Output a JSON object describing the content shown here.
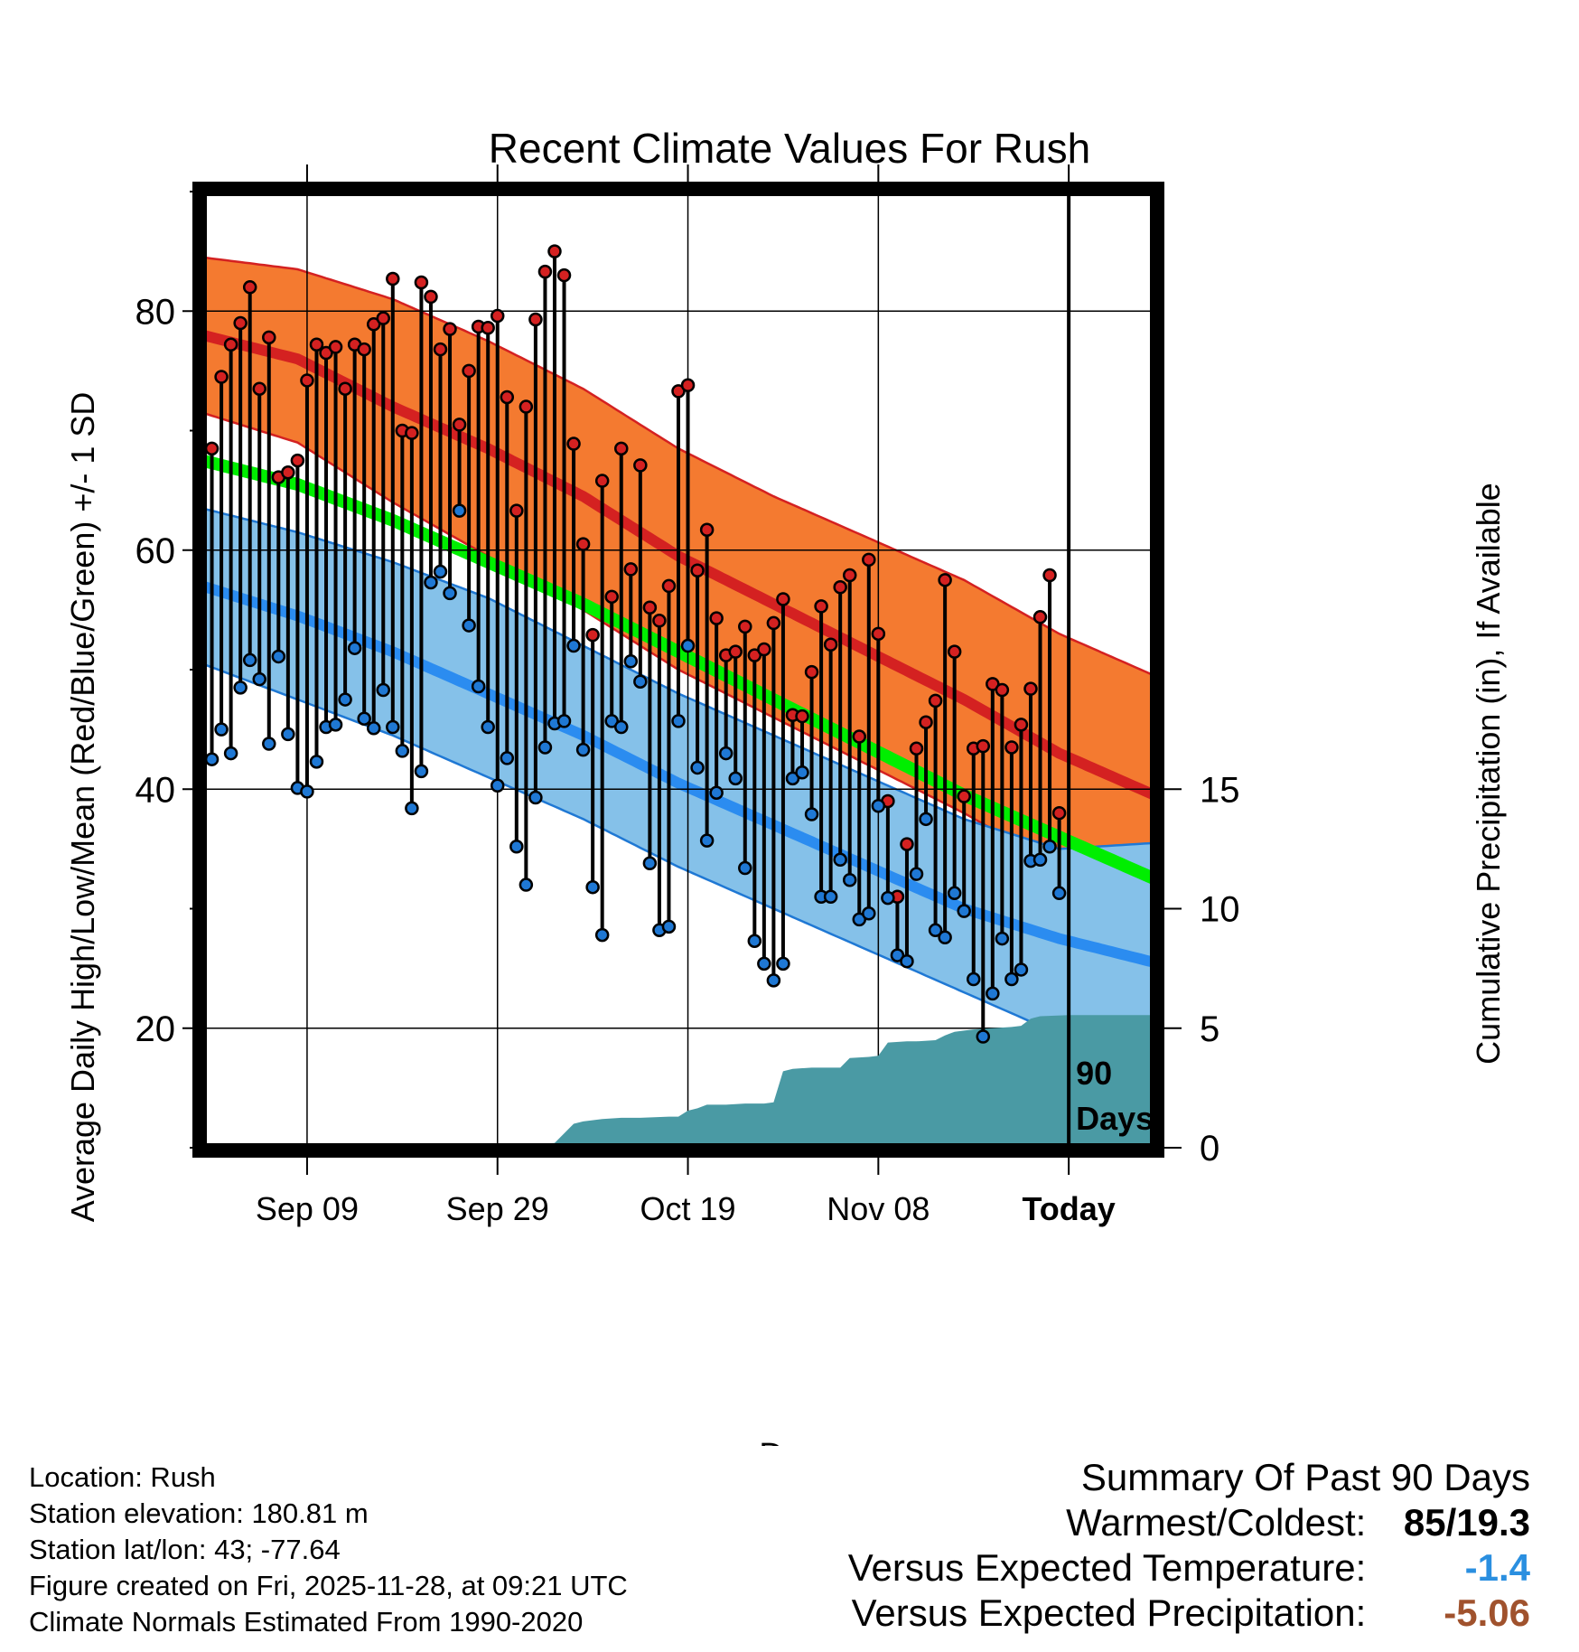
{
  "chart_data": {
    "type": "line",
    "title": "Recent Climate Values For Rush",
    "xlabel": "Day",
    "ylabel": "Average Daily High/Low/Mean (Red/Blue/Green) +/- 1 SD",
    "y2label": "Cumulative Precipitation (in), If Available",
    "xlim": [
      1,
      101
    ],
    "ylim": [
      10,
      90
    ],
    "y2lim": [
      0,
      40
    ],
    "xticks": [
      {
        "day": 12,
        "label": "Sep 09"
      },
      {
        "day": 32,
        "label": "Sep 29"
      },
      {
        "day": 52,
        "label": "Oct 19"
      },
      {
        "day": 72,
        "label": "Nov 08"
      },
      {
        "day": 92,
        "label": "Today"
      }
    ],
    "yticks": [
      20,
      40,
      60,
      80
    ],
    "y2ticks": [
      0,
      5,
      10,
      15
    ],
    "today_marker": {
      "day": 92,
      "label_line1": "90",
      "label_line2": "Days"
    },
    "normals": {
      "day_index": [
        1,
        11,
        21,
        31,
        41,
        51,
        61,
        71,
        81,
        91,
        101
      ],
      "high_upper": [
        84.5,
        83.5,
        81.0,
        77.5,
        73.5,
        68.5,
        64.5,
        61.0,
        57.5,
        53.0,
        49.5
      ],
      "high_mean": [
        78.0,
        76.0,
        72.0,
        68.5,
        64.5,
        59.5,
        55.5,
        51.5,
        47.5,
        43.0,
        39.5
      ],
      "high_lower": [
        71.5,
        69.0,
        64.0,
        59.5,
        55.0,
        50.0,
        46.0,
        42.0,
        38.0,
        33.5,
        30.0
      ],
      "mean": [
        67.5,
        65.5,
        62.5,
        59.0,
        55.5,
        51.5,
        47.5,
        43.5,
        39.5,
        36.0,
        32.5
      ],
      "low_upper": [
        63.5,
        61.5,
        59.0,
        56.0,
        52.0,
        48.0,
        44.5,
        41.0,
        37.5,
        35.0,
        35.5
      ],
      "low_mean": [
        57.0,
        54.5,
        51.5,
        48.0,
        44.5,
        40.5,
        37.0,
        33.5,
        30.0,
        27.5,
        25.5
      ],
      "low_lower": [
        50.5,
        47.5,
        44.5,
        41.0,
        37.5,
        33.5,
        30.0,
        26.5,
        23.0,
        19.5,
        17.0
      ]
    },
    "series": [
      {
        "name": "Daily High",
        "color": "#d42121",
        "values": [
          68.5,
          74.5,
          77.2,
          79.0,
          82.0,
          73.5,
          77.8,
          66.1,
          66.5,
          67.5,
          74.2,
          77.2,
          76.5,
          77.0,
          73.5,
          77.2,
          76.8,
          78.9,
          79.4,
          82.7,
          70.0,
          69.8,
          82.4,
          81.2,
          76.8,
          78.5,
          70.5,
          75.0,
          78.7,
          78.6,
          79.6,
          72.8,
          63.3,
          72.0,
          79.3,
          83.3,
          85.0,
          83.0,
          68.9,
          60.5,
          52.9,
          65.8,
          56.1,
          68.5,
          58.4,
          67.1,
          55.2,
          54.1,
          57.0,
          73.3,
          73.8,
          58.3,
          61.7,
          54.3,
          51.2,
          51.5,
          53.6,
          51.2,
          51.7,
          53.9,
          55.9,
          46.2,
          46.1,
          49.8,
          55.3,
          52.1,
          56.9,
          57.9,
          44.4,
          59.2,
          53.0,
          39.0,
          31.0,
          35.4,
          43.4,
          45.6,
          47.4,
          57.5,
          51.5,
          39.4,
          43.4,
          43.6,
          48.8,
          48.3,
          43.5,
          45.4,
          48.4,
          54.4,
          57.9,
          38.0
        ]
      },
      {
        "name": "Daily Low",
        "color": "#1f78d4",
        "values": [
          42.5,
          45.0,
          43.0,
          48.5,
          50.8,
          49.2,
          43.8,
          51.1,
          44.6,
          40.1,
          39.8,
          42.3,
          45.2,
          45.4,
          47.5,
          51.8,
          45.9,
          45.1,
          48.3,
          45.2,
          43.2,
          38.4,
          41.5,
          57.3,
          58.2,
          56.4,
          63.3,
          53.7,
          48.6,
          45.2,
          40.3,
          42.6,
          35.2,
          32.0,
          39.3,
          43.5,
          45.5,
          45.7,
          52.0,
          43.3,
          31.8,
          27.8,
          45.7,
          45.2,
          50.7,
          49.0,
          33.8,
          28.2,
          28.5,
          45.7,
          52.0,
          41.8,
          35.7,
          39.7,
          43.0,
          40.9,
          33.4,
          27.3,
          25.4,
          24.0,
          25.4,
          40.9,
          41.4,
          37.9,
          31.0,
          31.0,
          34.1,
          32.4,
          29.1,
          29.6,
          38.6,
          30.9,
          26.1,
          25.6,
          32.9,
          37.5,
          28.2,
          27.6,
          31.3,
          29.8,
          24.1,
          19.3,
          22.9,
          27.5,
          24.1,
          24.9,
          34.0,
          34.1,
          35.2,
          31.3
        ]
      }
    ],
    "precipitation": {
      "name": "Cumulative Precipitation",
      "color": "#4a9aa4",
      "day_index": [
        1,
        28,
        32,
        36,
        38,
        40,
        41,
        43,
        45,
        47,
        50,
        51,
        52,
        53,
        54,
        56,
        58,
        60,
        61,
        62,
        63,
        65,
        68,
        69,
        71,
        72,
        73,
        75,
        76,
        78,
        79,
        80,
        81,
        82,
        86,
        87,
        88,
        89,
        92,
        101
      ],
      "values": [
        0.0,
        0.0,
        0.1,
        0.15,
        0.2,
        1.0,
        1.1,
        1.2,
        1.25,
        1.25,
        1.3,
        1.3,
        1.55,
        1.65,
        1.8,
        1.8,
        1.85,
        1.85,
        1.9,
        3.2,
        3.3,
        3.35,
        3.35,
        3.75,
        3.8,
        3.85,
        4.4,
        4.45,
        4.45,
        4.5,
        4.7,
        4.85,
        4.9,
        4.95,
        5.05,
        5.1,
        5.4,
        5.5,
        5.55,
        5.55
      ]
    }
  },
  "info": {
    "location": "Location: Rush",
    "elevation": "Station elevation: 180.81 m",
    "latlon": "Station lat/lon: 43; -77.64",
    "created": "Figure created on Fri, 2025-11-28, at 09:21 UTC",
    "normals": "Climate Normals Estimated From 1990-2020"
  },
  "summary": {
    "title": "Summary Of Past 90 Days",
    "warmest_label": "Warmest/Coldest:",
    "warmest_value": "85/19.3",
    "temp_label": "Versus Expected Temperature:",
    "temp_value": "-1.4",
    "temp_color": "#2a8fe0",
    "precip_label": "Versus Expected Precipitation:",
    "precip_value": "-5.06",
    "precip_color": "#a0522d"
  }
}
